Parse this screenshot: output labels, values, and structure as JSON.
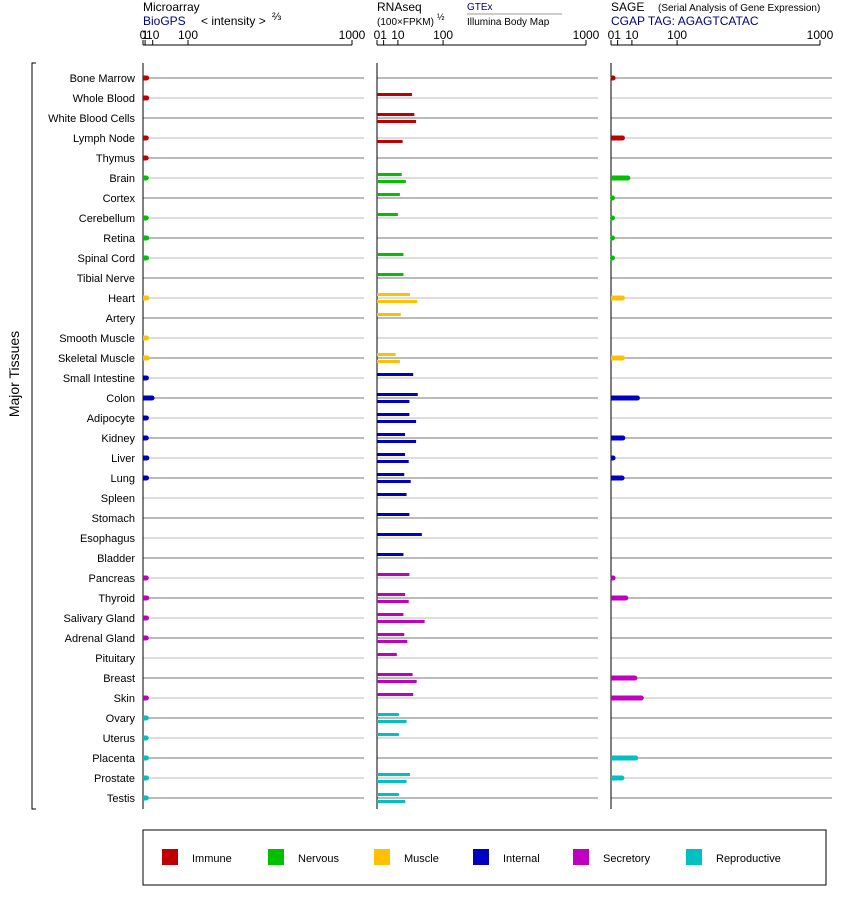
{
  "chart_data": {
    "type": "bar",
    "orientation": "horizontal",
    "y_axis_label": "Major Tissues",
    "scale_note": "bar length proportional to value^(2/3) (Microarray) / value^(1/2) (RNAseq, SAGE)",
    "tissues": [
      {
        "name": "Bone Marrow",
        "group": "Immune"
      },
      {
        "name": "Whole Blood",
        "group": "Immune"
      },
      {
        "name": "White Blood Cells",
        "group": "Immune"
      },
      {
        "name": "Lymph Node",
        "group": "Immune"
      },
      {
        "name": "Thymus",
        "group": "Immune"
      },
      {
        "name": "Brain",
        "group": "Nervous"
      },
      {
        "name": "Cortex",
        "group": "Nervous"
      },
      {
        "name": "Cerebellum",
        "group": "Nervous"
      },
      {
        "name": "Retina",
        "group": "Nervous"
      },
      {
        "name": "Spinal Cord",
        "group": "Nervous"
      },
      {
        "name": "Tibial Nerve",
        "group": "Nervous"
      },
      {
        "name": "Heart",
        "group": "Muscle"
      },
      {
        "name": "Artery",
        "group": "Muscle"
      },
      {
        "name": "Smooth Muscle",
        "group": "Muscle"
      },
      {
        "name": "Skeletal Muscle",
        "group": "Muscle"
      },
      {
        "name": "Small Intestine",
        "group": "Internal"
      },
      {
        "name": "Colon",
        "group": "Internal"
      },
      {
        "name": "Adipocyte",
        "group": "Internal"
      },
      {
        "name": "Kidney",
        "group": "Internal"
      },
      {
        "name": "Liver",
        "group": "Internal"
      },
      {
        "name": "Lung",
        "group": "Internal"
      },
      {
        "name": "Spleen",
        "group": "Internal"
      },
      {
        "name": "Stomach",
        "group": "Internal"
      },
      {
        "name": "Esophagus",
        "group": "Internal"
      },
      {
        "name": "Bladder",
        "group": "Internal"
      },
      {
        "name": "Pancreas",
        "group": "Secretory"
      },
      {
        "name": "Thyroid",
        "group": "Secretory"
      },
      {
        "name": "Salivary Gland",
        "group": "Secretory"
      },
      {
        "name": "Adrenal Gland",
        "group": "Secretory"
      },
      {
        "name": "Pituitary",
        "group": "Secretory"
      },
      {
        "name": "Breast",
        "group": "Secretory"
      },
      {
        "name": "Skin",
        "group": "Secretory"
      },
      {
        "name": "Ovary",
        "group": "Reproductive"
      },
      {
        "name": "Uterus",
        "group": "Reproductive"
      },
      {
        "name": "Placenta",
        "group": "Reproductive"
      },
      {
        "name": "Prostate",
        "group": "Reproductive"
      },
      {
        "name": "Testis",
        "group": "Reproductive"
      }
    ],
    "groups": [
      {
        "name": "Immune",
        "color": "#c00000"
      },
      {
        "name": "Nervous",
        "color": "#00c000"
      },
      {
        "name": "Muscle",
        "color": "#ffc000"
      },
      {
        "name": "Internal",
        "color": "#0000c0"
      },
      {
        "name": "Secretory",
        "color": "#c000c0"
      },
      {
        "name": "Reproductive",
        "color": "#00c0c0"
      }
    ],
    "panels": [
      {
        "id": "microarray",
        "title": "Microarray",
        "source_label": "BioGPS",
        "scale_label": "< intensity >",
        "scale_exponent": "⅔",
        "exponent": 0.6667,
        "max": 1000,
        "ticks": [
          {
            "v": 0,
            "label": "0"
          },
          {
            "v": 1,
            "label": "1"
          },
          {
            "v": 10,
            "label": "10"
          },
          {
            "v": 100,
            "label": "100"
          },
          {
            "v": 1000,
            "label": "1000"
          }
        ],
        "bar_style": "thick",
        "values": [
          2.3,
          2.3,
          null,
          2.0,
          1.9,
          2.0,
          null,
          2.0,
          2.3,
          2.2,
          null,
          2.4,
          null,
          2.2,
          2.9,
          2.1,
          9.0,
          2.1,
          2.0,
          2.5,
          2.2,
          null,
          null,
          null,
          null,
          2.0,
          2.4,
          2.2,
          2.0,
          null,
          null,
          2.1,
          2.0,
          1.9,
          2.1,
          2.2,
          2.0
        ]
      },
      {
        "id": "rnaseq",
        "title": "RNAseq",
        "scale_label": "(100×FPKM)",
        "scale_exponent": "½",
        "source1_label": "GTEx",
        "source2_label": "Illumina Body Map",
        "exponent": 0.5,
        "max": 1000,
        "ticks": [
          {
            "v": 0,
            "label": "0"
          },
          {
            "v": 1,
            "label": "1"
          },
          {
            "v": 10,
            "label": "10"
          },
          {
            "v": 100,
            "label": "100"
          },
          {
            "v": 1000,
            "label": "1000"
          }
        ],
        "bar_style": "pair",
        "gtex": [
          null,
          28,
          32,
          null,
          null,
          14,
          12,
          10,
          null,
          16,
          16,
          25,
          13,
          null,
          8,
          30,
          38,
          24,
          18,
          18,
          17,
          20,
          24,
          46,
          16,
          24,
          18,
          16,
          17,
          9,
          29,
          30,
          11,
          11,
          null,
          25,
          11
        ],
        "illumina": [
          null,
          null,
          35,
          15,
          null,
          19,
          null,
          null,
          null,
          null,
          null,
          37,
          null,
          null,
          12,
          null,
          24,
          35,
          35,
          23,
          26,
          null,
          null,
          null,
          null,
          null,
          23,
          52,
          21,
          null,
          36,
          null,
          20,
          null,
          null,
          20,
          18
        ]
      },
      {
        "id": "sage",
        "title": "SAGE",
        "subtitle": "(Serial Analysis of Gene Expression)",
        "source_label": "CGAP TAG: AGAGTCATAC",
        "exponent": 0.5,
        "max": 1000,
        "ticks": [
          {
            "v": 0,
            "label": "0"
          },
          {
            "v": 1,
            "label": "1"
          },
          {
            "v": 10,
            "label": "10"
          },
          {
            "v": 100,
            "label": "100"
          },
          {
            "v": 1000,
            "label": "1000"
          }
        ],
        "bar_style": "thick",
        "values": [
          0.1,
          null,
          null,
          3.0,
          null,
          6.5,
          0.05,
          0.05,
          0.05,
          0.05,
          null,
          3.0,
          null,
          null,
          3.0,
          null,
          16,
          null,
          3.2,
          0.1,
          2.8,
          null,
          null,
          null,
          null,
          0.1,
          5.0,
          null,
          null,
          null,
          13,
          21,
          null,
          null,
          14,
          2.7,
          null
        ]
      }
    ],
    "legend": [
      "Immune",
      "Nervous",
      "Muscle",
      "Internal",
      "Secretory",
      "Reproductive"
    ]
  }
}
